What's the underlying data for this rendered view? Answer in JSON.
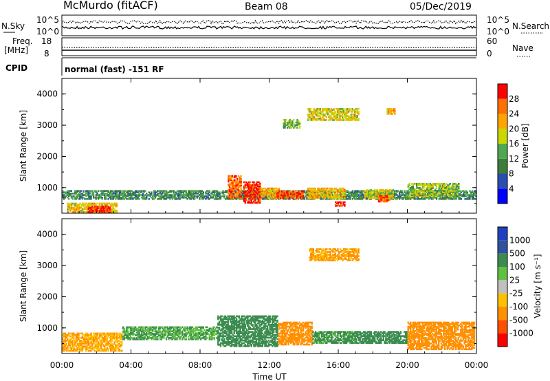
{
  "header": {
    "site": "McMurdo (fitACF)",
    "beam": "Beam 08",
    "date": "05/Dec/2019"
  },
  "status_strip": {
    "left_label": "N.Sky",
    "right_label": "N.Search",
    "left_ticks": [
      "10^5",
      "10^0"
    ],
    "right_ticks": [
      "10^5",
      "10^0"
    ]
  },
  "freq_strip": {
    "left_label": "Freq.",
    "left_unit": "[MHz]",
    "right_label": "Nave",
    "left_ticks": [
      "18",
      "8"
    ],
    "right_ticks": [
      "60",
      "0"
    ]
  },
  "cpid": {
    "label": "CPID",
    "value": "normal (fast) -151 RF"
  },
  "power_panel": {
    "ylabel": "Slant Range [km]",
    "yticks": [
      "4000",
      "3000",
      "2000",
      "1000"
    ],
    "colorbar_label": "Power [dB]",
    "colorbar_ticks": [
      "28",
      "24",
      "20",
      "16",
      "12",
      "8",
      "4"
    ],
    "colors": [
      "#0000ff",
      "#2b4fb0",
      "#3c7d3c",
      "#4fa84f",
      "#c8d800",
      "#ffa500",
      "#ff7000",
      "#ff0000"
    ]
  },
  "velocity_panel": {
    "ylabel": "Slant Range [km]",
    "yticks": [
      "4000",
      "3000",
      "2000",
      "1000"
    ],
    "colorbar_label": "Velocity [m s⁻¹]",
    "colorbar_ticks": [
      "1000",
      "500",
      "100",
      "25",
      "-25",
      "-100",
      "-500",
      "-1000"
    ],
    "colors": [
      "#2040c0",
      "#3050a0",
      "#3c8c50",
      "#60c040",
      "#c0c0c0",
      "#ffc000",
      "#ff9000",
      "#ff5000",
      "#ff0000"
    ]
  },
  "xaxis": {
    "label": "Time UT",
    "ticks": [
      "00:00",
      "04:00",
      "08:00",
      "12:00",
      "16:00",
      "20:00",
      "00:00"
    ]
  },
  "chart_data": [
    {
      "type": "heatmap",
      "name": "power",
      "xlabel": "Time UT",
      "ylabel": "Slant Range [km]",
      "xlim": [
        0,
        24
      ],
      "ylim": [
        180,
        4500
      ],
      "zlabel": "Power [dB]",
      "zlim": [
        0,
        32
      ],
      "blobs": [
        {
          "t0": 0.0,
          "t1": 24.0,
          "r0": 620,
          "r1": 920,
          "v": 11
        },
        {
          "t0": 0.3,
          "t1": 3.2,
          "r0": 200,
          "r1": 520,
          "v": 20
        },
        {
          "t0": 1.5,
          "t1": 2.8,
          "r0": 200,
          "r1": 420,
          "v": 29
        },
        {
          "t0": 9.6,
          "t1": 10.4,
          "r0": 650,
          "r1": 1400,
          "v": 26
        },
        {
          "t0": 10.5,
          "t1": 11.5,
          "r0": 500,
          "r1": 1200,
          "v": 29
        },
        {
          "t0": 11.5,
          "t1": 12.6,
          "r0": 650,
          "r1": 1000,
          "v": 22
        },
        {
          "t0": 12.4,
          "t1": 14.0,
          "r0": 650,
          "r1": 900,
          "v": 28
        },
        {
          "t0": 14.2,
          "t1": 16.4,
          "r0": 650,
          "r1": 1000,
          "v": 21
        },
        {
          "t0": 15.8,
          "t1": 16.4,
          "r0": 400,
          "r1": 560,
          "v": 29
        },
        {
          "t0": 17.5,
          "t1": 19.2,
          "r0": 650,
          "r1": 950,
          "v": 18
        },
        {
          "t0": 18.3,
          "t1": 19.0,
          "r0": 540,
          "r1": 760,
          "v": 27
        },
        {
          "t0": 20.0,
          "t1": 23.0,
          "r0": 700,
          "r1": 1150,
          "v": 16
        },
        {
          "t0": 14.2,
          "t1": 17.2,
          "r0": 3150,
          "r1": 3550,
          "v": 19
        },
        {
          "t0": 12.8,
          "t1": 13.8,
          "r0": 2900,
          "r1": 3200,
          "v": 14
        },
        {
          "t0": 18.8,
          "t1": 19.3,
          "r0": 3350,
          "r1": 3550,
          "v": 22
        }
      ]
    },
    {
      "type": "heatmap",
      "name": "velocity",
      "xlabel": "Time UT",
      "ylabel": "Slant Range [km]",
      "xlim": [
        0,
        24
      ],
      "ylim": [
        180,
        4500
      ],
      "zlabel": "Velocity [m s⁻¹]",
      "blobs": [
        {
          "t0": 0.0,
          "t1": 3.5,
          "r0": 250,
          "r1": 850,
          "v": -100
        },
        {
          "t0": 3.5,
          "t1": 9.0,
          "r0": 620,
          "r1": 1050,
          "v": 100
        },
        {
          "t0": 9.0,
          "t1": 12.5,
          "r0": 400,
          "r1": 1400,
          "v": 300
        },
        {
          "t0": 12.5,
          "t1": 14.5,
          "r0": 450,
          "r1": 1200,
          "v": -200
        },
        {
          "t0": 14.5,
          "t1": 17.0,
          "r0": 500,
          "r1": 900,
          "v": 120
        },
        {
          "t0": 17.0,
          "t1": 20.0,
          "r0": 500,
          "r1": 900,
          "v": 200
        },
        {
          "t0": 20.0,
          "t1": 23.9,
          "r0": 300,
          "r1": 1200,
          "v": -150
        },
        {
          "t0": 14.3,
          "t1": 17.2,
          "r0": 3150,
          "r1": 3550,
          "v": -110
        }
      ]
    }
  ]
}
